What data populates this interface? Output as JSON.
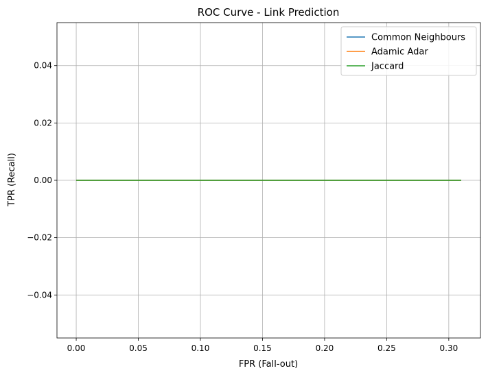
{
  "chart_data": {
    "type": "line",
    "title": "ROC Curve - Link Prediction",
    "xlabel": "FPR (Fall-out)",
    "ylabel": "TPR (Recall)",
    "xlim": [
      -0.0155,
      0.3255
    ],
    "ylim": [
      -0.055,
      0.055
    ],
    "xticks": [
      0.0,
      0.05,
      0.1,
      0.15,
      0.2,
      0.25,
      0.3
    ],
    "xtick_labels": [
      "0.00",
      "0.05",
      "0.10",
      "0.15",
      "0.20",
      "0.25",
      "0.30"
    ],
    "yticks": [
      -0.04,
      -0.02,
      0.0,
      0.02,
      0.04
    ],
    "ytick_labels": [
      "−0.04",
      "−0.02",
      "0.00",
      "0.02",
      "0.04"
    ],
    "grid": true,
    "legend_position": "upper right",
    "series": [
      {
        "name": "Common Neighbours",
        "color": "#1f77b4",
        "x": [
          0.0,
          0.31
        ],
        "y": [
          0.0,
          0.0
        ]
      },
      {
        "name": "Adamic Adar",
        "color": "#ff7f0e",
        "x": [
          0.0,
          0.31
        ],
        "y": [
          0.0,
          0.0
        ]
      },
      {
        "name": "Jaccard",
        "color": "#2ca02c",
        "x": [
          0.0,
          0.31
        ],
        "y": [
          0.0,
          0.0
        ]
      }
    ]
  }
}
